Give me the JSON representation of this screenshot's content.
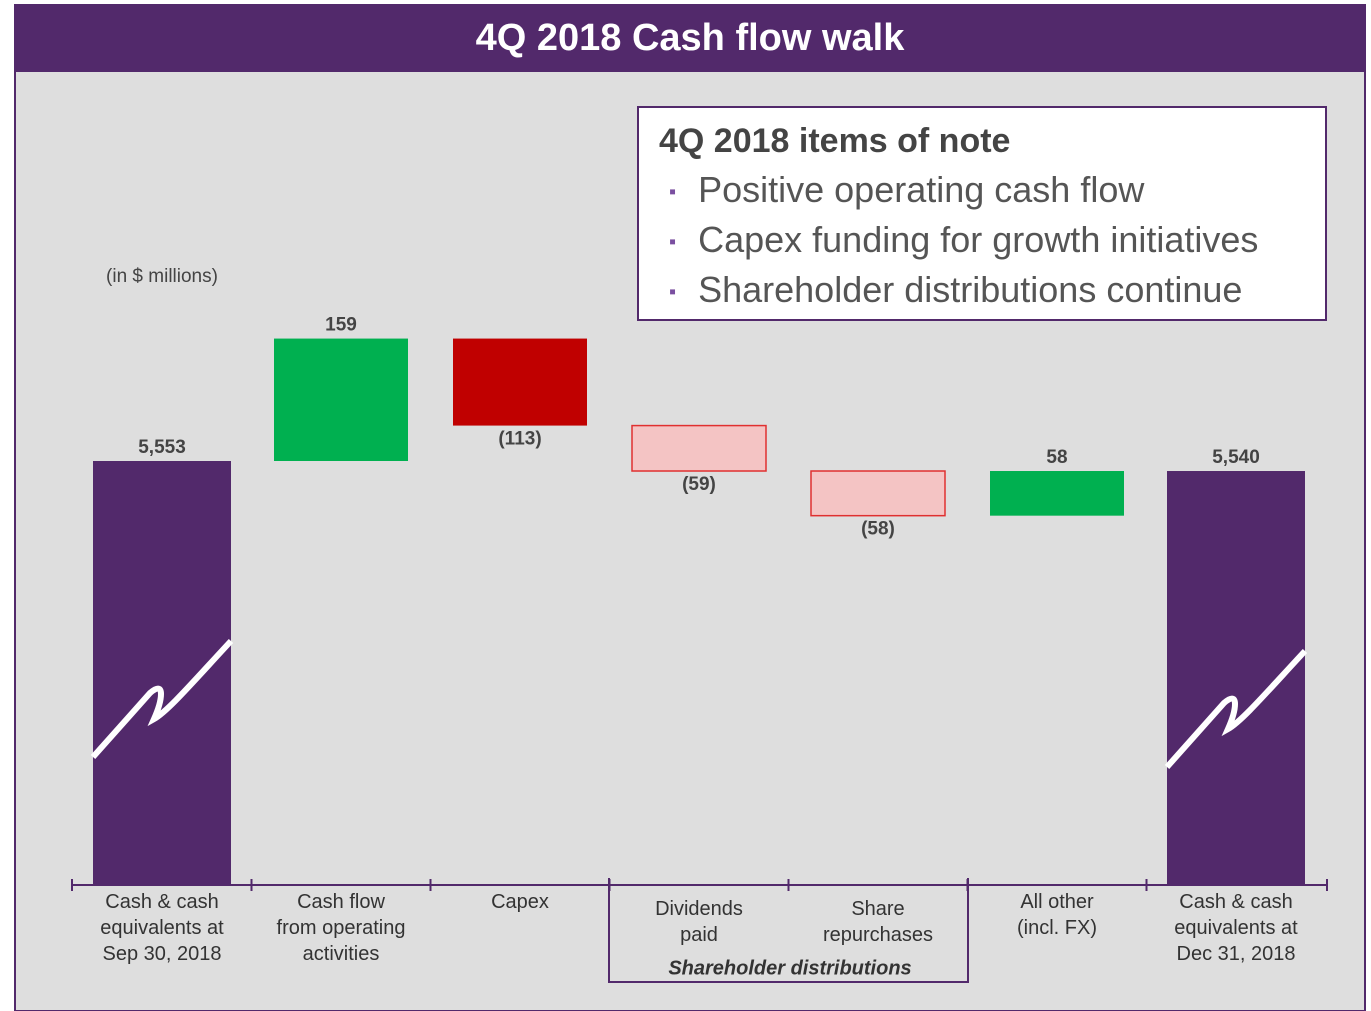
{
  "chart_data": {
    "type": "waterfall",
    "title": "4Q 2018 Cash flow walk",
    "unit_label": "(in $ millions)",
    "note": {
      "title": "4Q 2018 items of note",
      "items": [
        "Positive operating cash flow",
        "Capex funding for growth initiatives",
        "Shareholder distributions continue"
      ]
    },
    "categories": [
      "Cash & cash\nequivalents at\nSep 30, 2018",
      "Cash flow\nfrom operating\nactivities",
      "Capex",
      "Dividends\npaid",
      "Share\nrepurchases",
      "All other\n(incl. FX)",
      "Cash & cash\nequivalents at\nDec 31, 2018"
    ],
    "values": [
      5553,
      159,
      -113,
      -59,
      -58,
      58,
      5540
    ],
    "value_labels": [
      "5,553",
      "159",
      "(113)",
      "(59)",
      "(58)",
      "58",
      "5,540"
    ],
    "kinds": [
      "total",
      "change",
      "change",
      "change",
      "change",
      "change",
      "total"
    ],
    "colors": [
      "#52296b",
      "#00b050",
      "#c00000",
      "#f4c4c4",
      "#f4c4c4",
      "#00b050",
      "#52296b"
    ],
    "group_label": "Shareholder distributions"
  }
}
